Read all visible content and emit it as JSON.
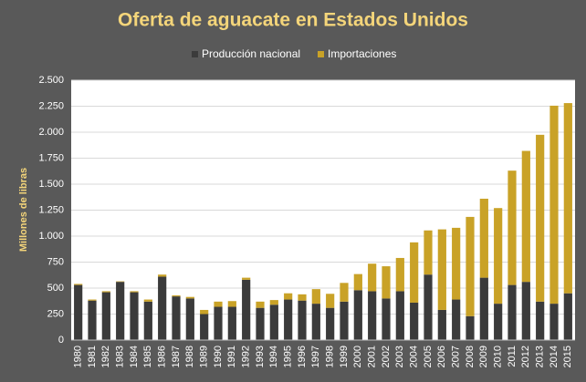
{
  "chart_data": {
    "type": "stacked_bar",
    "title": "Oferta de aguacate en Estados Unidos",
    "y_label": "Millones de libras",
    "categories": [
      "1980",
      "1981",
      "1982",
      "1983",
      "1984",
      "1985",
      "1986",
      "1987",
      "1988",
      "1989",
      "1990",
      "1991",
      "1992",
      "1993",
      "1994",
      "1995",
      "1996",
      "1997",
      "1998",
      "1999",
      "2000",
      "2001",
      "2002",
      "2003",
      "2004",
      "2005",
      "2006",
      "2007",
      "2008",
      "2009",
      "2010",
      "2011",
      "2012",
      "2013",
      "2014",
      "2015"
    ],
    "series": [
      {
        "name": "Producción nacional",
        "color": "#3b3b3b",
        "values": [
          530,
          380,
          460,
          560,
          460,
          370,
          610,
          420,
          400,
          250,
          320,
          320,
          580,
          310,
          340,
          390,
          380,
          350,
          310,
          370,
          480,
          470,
          400,
          470,
          360,
          630,
          290,
          390,
          230,
          600,
          350,
          530,
          560,
          370,
          350,
          450
        ]
      },
      {
        "name": "Importaciones",
        "color": "#c9a227",
        "values": [
          10,
          10,
          10,
          5,
          10,
          20,
          20,
          10,
          15,
          40,
          50,
          55,
          20,
          60,
          45,
          60,
          60,
          140,
          135,
          180,
          155,
          265,
          310,
          320,
          580,
          425,
          775,
          690,
          955,
          760,
          920,
          1100,
          1260,
          1605,
          1905,
          1830
        ]
      }
    ],
    "ylim": [
      0,
      2500
    ],
    "yticks": [
      0,
      250,
      500,
      750,
      {
        "value": 1000,
        "label": "1.000"
      },
      {
        "value": 1250,
        "label": "1.250"
      },
      {
        "value": 1500,
        "label": "1.500"
      },
      {
        "value": 1750,
        "label": "1.750"
      },
      {
        "value": 2000,
        "label": "2.000"
      },
      {
        "value": 2250,
        "label": "2.250"
      },
      {
        "value": 2500,
        "label": "2.500"
      }
    ],
    "grid": true,
    "legend": "top"
  }
}
